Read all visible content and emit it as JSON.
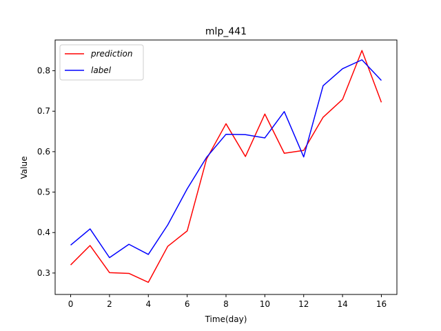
{
  "chart_data": {
    "type": "line",
    "title": "mlp_441",
    "xlabel": "Time(day)",
    "ylabel": "Value",
    "xlim": [
      -0.8,
      16.8
    ],
    "ylim": [
      0.247,
      0.876
    ],
    "xticks": [
      0,
      2,
      4,
      6,
      8,
      10,
      12,
      14,
      16
    ],
    "yticks": [
      0.3,
      0.4,
      0.5,
      0.6,
      0.7,
      0.8
    ],
    "ytick_labels": [
      "0.3",
      "0.4",
      "0.5",
      "0.6",
      "0.7",
      "0.8"
    ],
    "grid": false,
    "legend_position": "upper-left",
    "x": [
      0,
      1,
      2,
      3,
      4,
      5,
      6,
      7,
      8,
      9,
      10,
      11,
      12,
      13,
      14,
      15,
      16
    ],
    "series": [
      {
        "name": "prediction",
        "color": "#ff0000",
        "values": [
          0.32,
          0.368,
          0.301,
          0.299,
          0.277,
          0.366,
          0.404,
          0.582,
          0.669,
          0.588,
          0.693,
          0.596,
          0.603,
          0.685,
          0.729,
          0.85,
          0.722
        ]
      },
      {
        "name": "label",
        "color": "#0000ff",
        "values": [
          0.369,
          0.409,
          0.338,
          0.371,
          0.346,
          0.419,
          0.508,
          0.586,
          0.643,
          0.642,
          0.634,
          0.699,
          0.587,
          0.763,
          0.805,
          0.827,
          0.776
        ]
      }
    ]
  }
}
